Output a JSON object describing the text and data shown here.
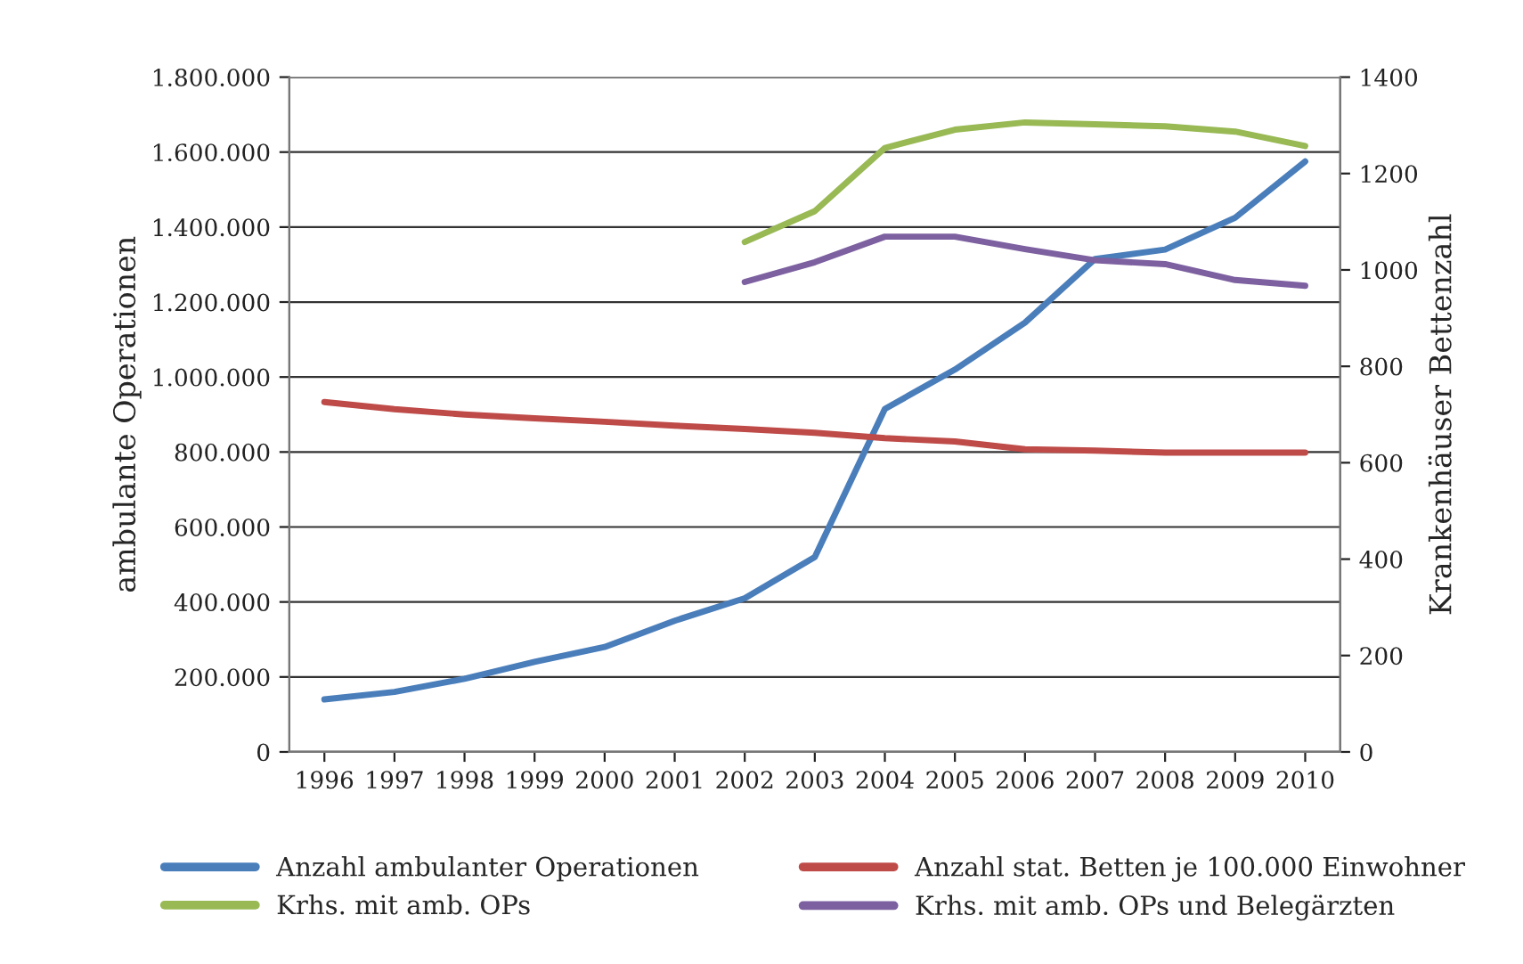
{
  "chart_data": {
    "type": "line",
    "categories": [
      "1996",
      "1997",
      "1998",
      "1999",
      "2000",
      "2001",
      "2002",
      "2003",
      "2004",
      "2005",
      "2006",
      "2007",
      "2008",
      "2009",
      "2010"
    ],
    "ylabel": "ambulante Operationen",
    "y2label": "Krankenhäuser Bettenzahl",
    "ylim": [
      0,
      1800000
    ],
    "yticks": [
      {
        "value": 0,
        "label": "0"
      },
      {
        "value": 200000,
        "label": "200.000"
      },
      {
        "value": 400000,
        "label": "400.000"
      },
      {
        "value": 600000,
        "label": "600.000"
      },
      {
        "value": 800000,
        "label": "800.000"
      },
      {
        "value": 1000000,
        "label": "1.000.000"
      },
      {
        "value": 1200000,
        "label": "1.200.000"
      },
      {
        "value": 1400000,
        "label": "1.400.000"
      },
      {
        "value": 1600000,
        "label": "1.600.000"
      },
      {
        "value": 1800000,
        "label": "1.800.000"
      }
    ],
    "y2lim": [
      0,
      1400
    ],
    "y2ticks": [
      0,
      200,
      400,
      600,
      800,
      1000,
      1200,
      1400
    ],
    "grid": "y",
    "legend": "bottom",
    "marker": "none",
    "line_style": "solid",
    "series": [
      {
        "name": "Anzahl ambulanter Operationen",
        "color": "#4a7ebb",
        "values": [
          140000,
          160000,
          195000,
          240000,
          280000,
          350000,
          410000,
          520000,
          915000,
          1020000,
          1145000,
          1315000,
          1340000,
          1425000,
          1575000
        ]
      },
      {
        "name": "Anzahl stat. Betten je 100.000 Einwohner",
        "color": "#be4b48",
        "axis": "y2",
        "values": [
          726,
          711,
          700,
          692,
          685,
          677,
          670,
          662,
          651,
          644,
          628,
          625,
          621,
          621,
          621
        ]
      },
      {
        "name": "Krhs. mit amb. OPs",
        "color": "#98b954",
        "axis": "y2",
        "values": [
          null,
          null,
          null,
          null,
          null,
          null,
          1058,
          1122,
          1253,
          1291,
          1306,
          1302,
          1298,
          1287,
          1257
        ]
      },
      {
        "name": "Krhs. mit amb. OPs und Belegärzten",
        "color": "#7d60a0",
        "axis": "y2",
        "values": [
          null,
          null,
          null,
          null,
          null,
          null,
          975,
          1016,
          1069,
          1069,
          1043,
          1020,
          1012,
          979,
          967
        ]
      }
    ]
  }
}
